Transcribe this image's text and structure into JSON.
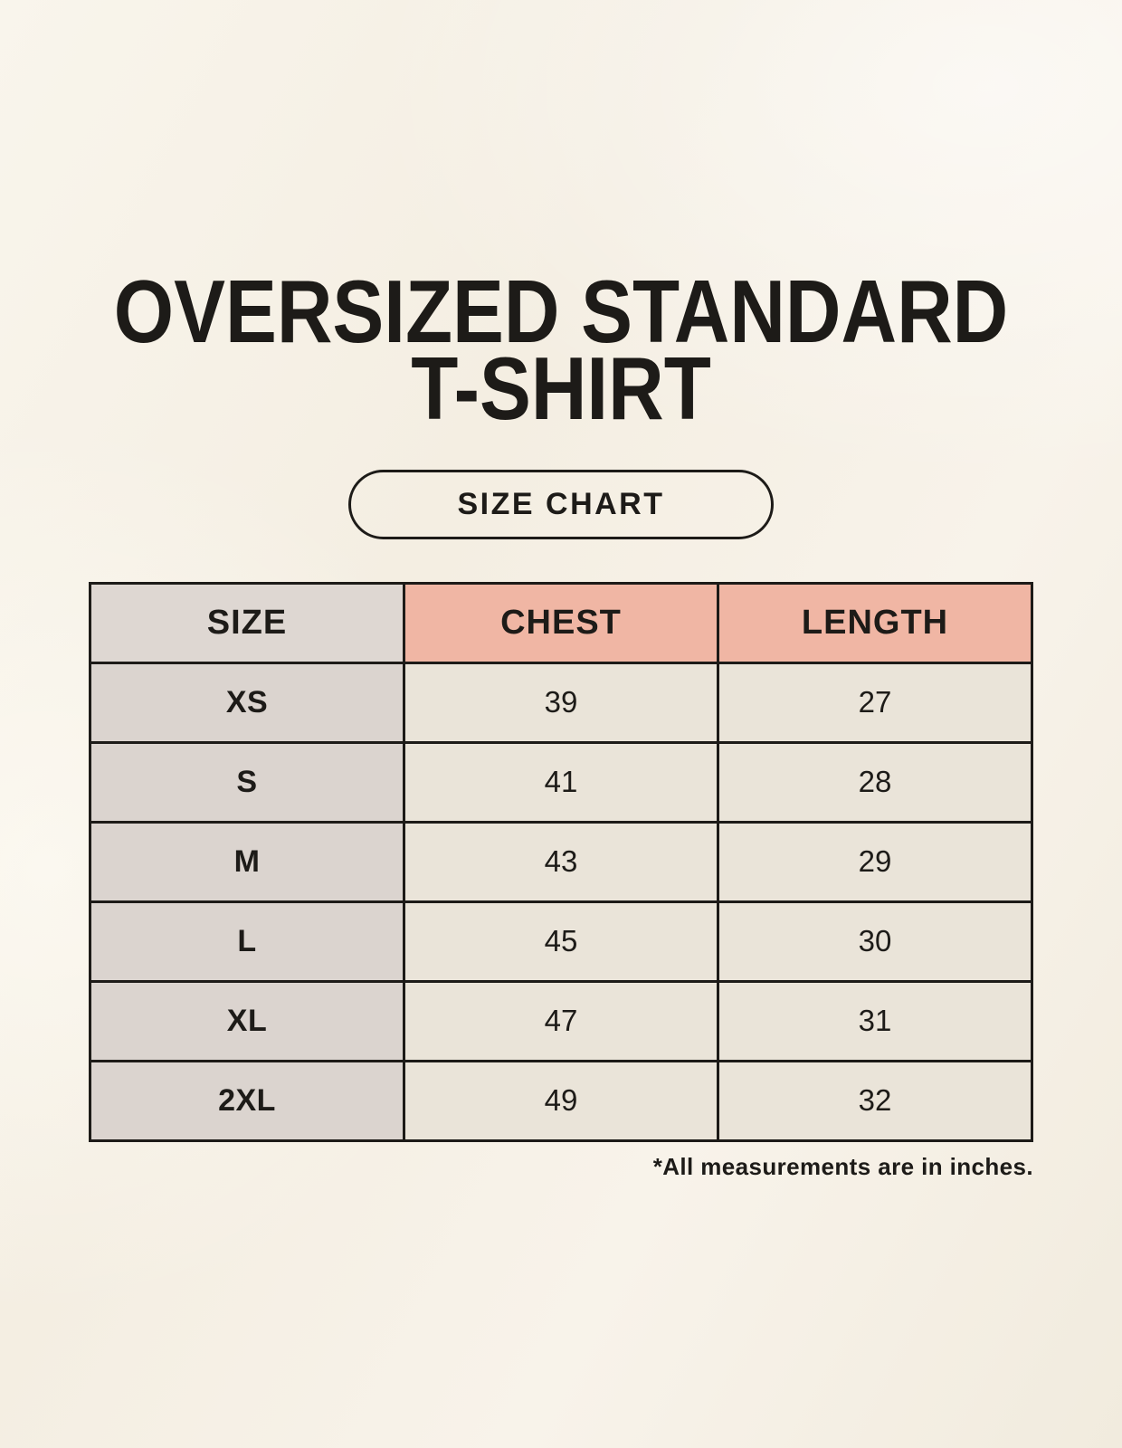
{
  "header": {
    "title_line1": "OVERSIZED STANDARD",
    "title_line2": "T-SHIRT",
    "size_chart_button": "SIZE CHART"
  },
  "chart_data": {
    "type": "table",
    "title": "OVERSIZED STANDARD T-SHIRT SIZE CHART",
    "columns": [
      "SIZE",
      "CHEST",
      "LENGTH"
    ],
    "rows": [
      [
        "XS",
        "39",
        "27"
      ],
      [
        "S",
        "41",
        "28"
      ],
      [
        "M",
        "43",
        "29"
      ],
      [
        "L",
        "45",
        "30"
      ],
      [
        "XL",
        "47",
        "31"
      ],
      [
        "2XL",
        "49",
        "32"
      ]
    ]
  },
  "footnote": "*All measurements are in inches.",
  "colors": {
    "background": "#f6f1e7",
    "text": "#1d1b18",
    "border": "#1d1b18",
    "header_size_bg": "#ded7d2",
    "header_measure_bg": "#f0b6a4",
    "size_col_bg": "#dbd4cf",
    "cell_bg": "#eae4d9"
  }
}
